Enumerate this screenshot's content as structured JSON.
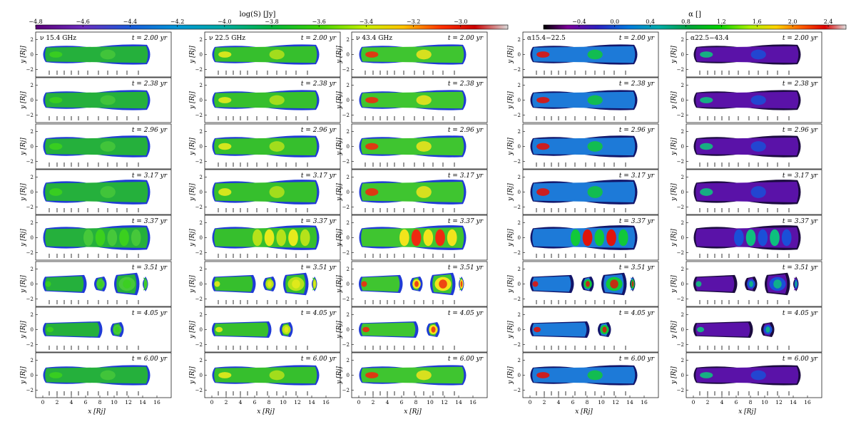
{
  "colorbars": [
    {
      "label": "log(S) [Jy]",
      "ticks": [
        "−4.8",
        "−4.6",
        "−4.4",
        "−4.2",
        "−4.0",
        "−3.8",
        "−3.6",
        "−3.4",
        "−3.2",
        "−3.0"
      ],
      "range": [
        -4.8,
        -2.8
      ],
      "colormap": "nipy_spectral"
    },
    {
      "label": "α []",
      "ticks": [
        "−0.4",
        "0.0",
        "0.4",
        "0.8",
        "1.2",
        "1.6",
        "2.0",
        "2.4"
      ],
      "range": [
        -0.8,
        2.6
      ],
      "colormap": "nipy_spectral"
    }
  ],
  "columns": [
    {
      "label": "ν  15.4 GHz",
      "kind": "flux"
    },
    {
      "label": "ν  22.5 GHz",
      "kind": "flux"
    },
    {
      "label": "ν  43.4 GHz",
      "kind": "flux"
    },
    {
      "label": "α15.4−22.5",
      "kind": "alpha"
    },
    {
      "label": "α22.5−43.4",
      "kind": "alpha"
    }
  ],
  "times": [
    "t = 2.00 yr",
    "t = 2.38 yr",
    "t = 2.96 yr",
    "t = 3.17 yr",
    "t = 3.37 yr",
    "t = 3.51 yr",
    "t = 4.05 yr",
    "t = 6.00 yr"
  ],
  "axes": {
    "ylabel": "y [Rj]",
    "xlabel": "x [Rj]",
    "yticks": [
      "2",
      "0",
      "−2"
    ],
    "xticks": [
      "0",
      "2",
      "4",
      "6",
      "8",
      "10",
      "12",
      "14",
      "16"
    ],
    "xlim": [
      -1,
      18
    ],
    "ylim": [
      -3,
      3
    ]
  },
  "colors": {
    "background": "#ffffff",
    "frame": "#000000"
  }
}
